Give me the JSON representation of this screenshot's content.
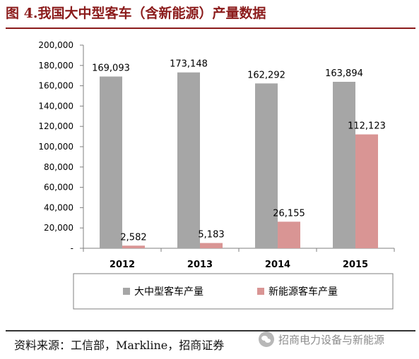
{
  "figure_title": "图 4.我国大中型客车（含新能源）产量数据",
  "source_text": "资料来源：工信部，Markline，招商证券",
  "watermark_text": "招商电力设备与新能源",
  "colors": {
    "title": "#8b1b1b",
    "series_total": "#a6a6a6",
    "series_ev": "#d99594"
  },
  "chart_data": {
    "type": "bar",
    "categories": [
      "2012",
      "2013",
      "2014",
      "2015"
    ],
    "series": [
      {
        "name": "大中型客车产量",
        "values": [
          169093,
          173148,
          162292,
          163894
        ],
        "data_labels": [
          "169,093",
          "173,148",
          "162,292",
          "163,894"
        ]
      },
      {
        "name": "新能源客车产量",
        "values": [
          2582,
          5183,
          26155,
          112123
        ],
        "data_labels": [
          "2,582",
          "5,183",
          "26,155",
          "112,123"
        ]
      }
    ],
    "ylim": [
      0,
      200000
    ],
    "yticks": [
      0,
      20000,
      40000,
      60000,
      80000,
      100000,
      120000,
      140000,
      160000,
      180000,
      200000
    ],
    "ytick_labels": [
      "-",
      "20,000",
      "40,000",
      "60,000",
      "80,000",
      "100,000",
      "120,000",
      "140,000",
      "160,000",
      "180,000",
      "200,000"
    ],
    "grid": false,
    "legend_position": "bottom"
  }
}
